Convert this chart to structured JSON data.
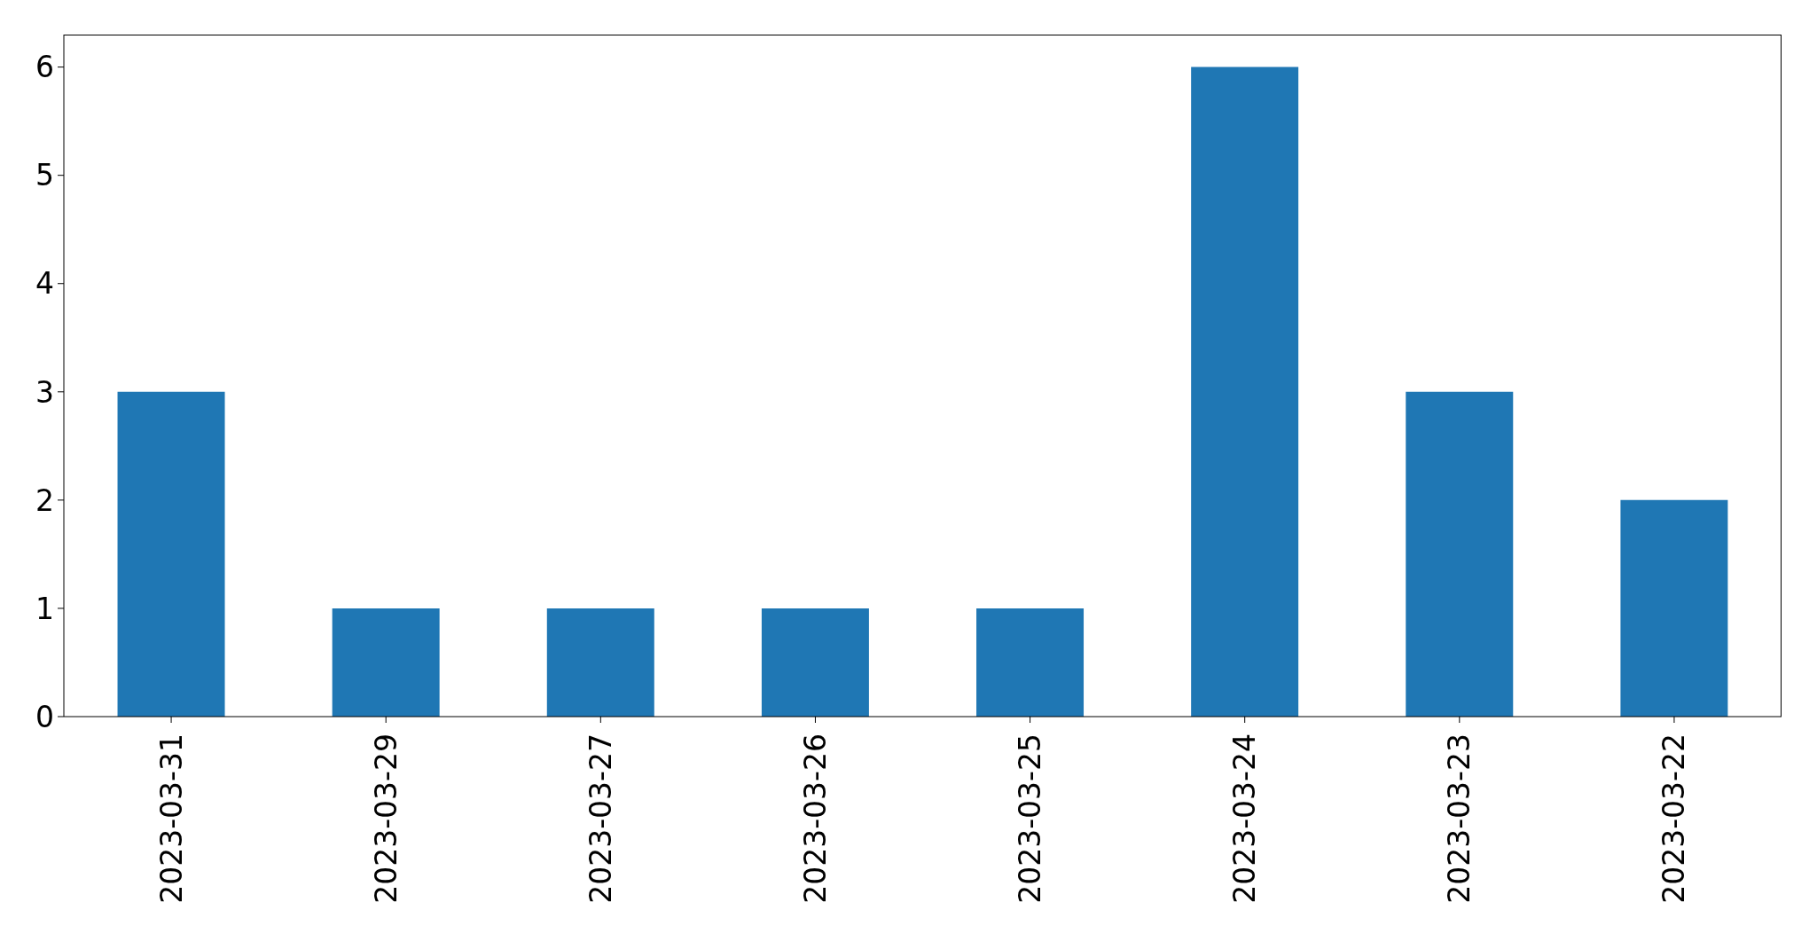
{
  "chart_data": {
    "type": "bar",
    "categories": [
      "2023-03-31",
      "2023-03-29",
      "2023-03-27",
      "2023-03-26",
      "2023-03-25",
      "2023-03-24",
      "2023-03-23",
      "2023-03-22"
    ],
    "values": [
      3,
      1,
      1,
      1,
      1,
      6,
      3,
      2
    ],
    "color": "#1f77b4",
    "ylim": [
      0,
      6.3
    ],
    "yticks": [
      0,
      1,
      2,
      3,
      4,
      5,
      6
    ]
  }
}
